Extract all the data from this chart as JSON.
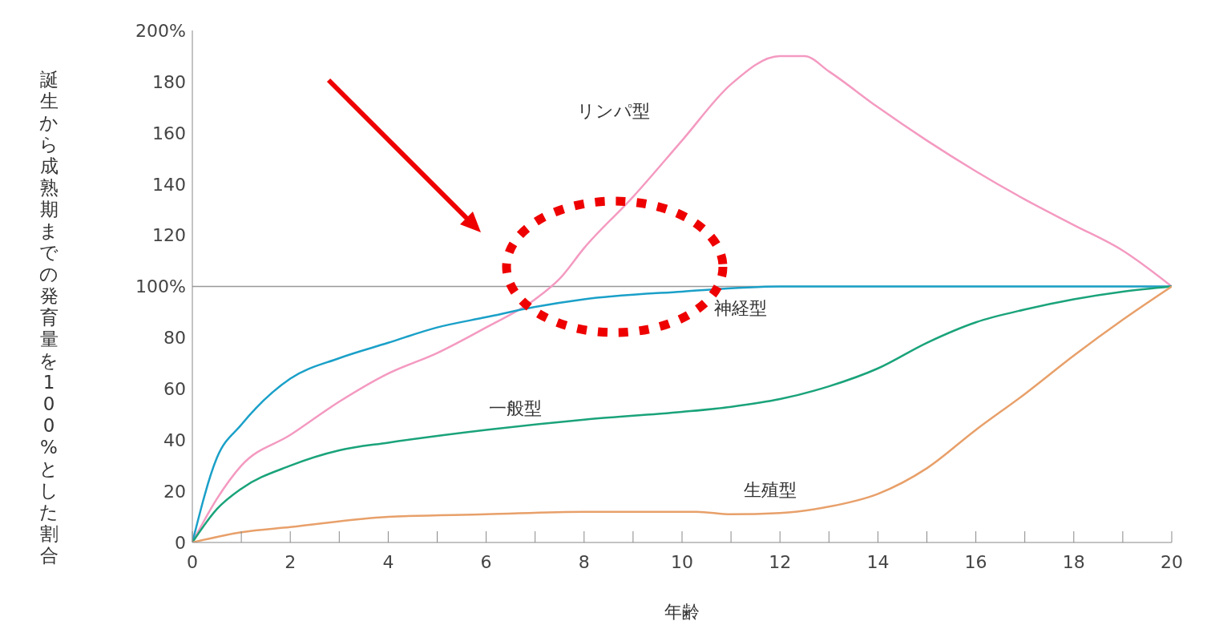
{
  "chart_data": {
    "type": "line",
    "xlabel": "年齢",
    "ylabel": "誕生から成熟期までの発育量を100%とした割合",
    "xlim": [
      0,
      20
    ],
    "ylim": [
      0,
      200
    ],
    "xticks": [
      0,
      {
        "value": 1,
        "label": null
      },
      2,
      {
        "value": 3,
        "label": null
      },
      4,
      {
        "value": 5,
        "label": null
      },
      6,
      {
        "value": 7,
        "label": null
      },
      8,
      {
        "value": 9,
        "label": null
      },
      10,
      {
        "value": 11,
        "label": null
      },
      12,
      {
        "value": 13,
        "label": null
      },
      14,
      {
        "value": 15,
        "label": null
      },
      16,
      {
        "value": 17,
        "label": null
      },
      18,
      {
        "value": 19,
        "label": null
      },
      20
    ],
    "yticks": [
      0,
      20,
      40,
      60,
      80,
      {
        "value": 100,
        "label": "100%"
      },
      120,
      140,
      160,
      180,
      {
        "value": 200,
        "label": "200%"
      }
    ],
    "grid": false,
    "legend": false,
    "marker": "none",
    "line_style": "solid",
    "ref_lines": [
      {
        "axis": "y",
        "value": 100,
        "color": "#999999"
      }
    ],
    "series": [
      {
        "name": "リンパ型",
        "color": "#f49ac1",
        "x": [
          0,
          0.5,
          1,
          2,
          3,
          4,
          5,
          6,
          7,
          7.5,
          8,
          9,
          10,
          11,
          12,
          12.5,
          13,
          14,
          15,
          16,
          17,
          18,
          19,
          20
        ],
        "values": [
          0,
          17,
          30,
          42,
          55,
          66,
          74,
          84,
          95,
          103,
          115,
          135,
          157,
          179,
          190,
          190,
          184,
          170,
          157,
          145,
          134,
          124,
          114,
          100
        ]
      },
      {
        "name": "神経型",
        "color": "#1aa0c8",
        "x": [
          0,
          0.5,
          1,
          2,
          3,
          4,
          5,
          6,
          7,
          8,
          10,
          12,
          14,
          16,
          18,
          20
        ],
        "values": [
          0,
          33,
          46,
          64,
          72,
          78,
          84,
          88,
          92,
          95,
          98,
          100,
          100,
          100,
          100,
          100
        ]
      },
      {
        "name": "一般型",
        "color": "#1aa37a",
        "x": [
          0,
          0.5,
          1,
          2,
          3,
          4,
          6,
          8,
          10,
          11,
          12,
          13,
          14,
          15,
          16,
          17,
          18,
          19,
          20
        ],
        "values": [
          0,
          13,
          21,
          30,
          36,
          39,
          44,
          48,
          51,
          53,
          56,
          61,
          68,
          78,
          86,
          91,
          95,
          98,
          100
        ]
      },
      {
        "name": "生殖型",
        "color": "#e8a06a",
        "x": [
          0,
          1,
          2,
          4,
          6,
          8,
          10.3,
          11,
          12,
          13,
          14,
          15,
          16,
          17,
          18,
          19,
          20
        ],
        "values": [
          0,
          4,
          6,
          10,
          11,
          12,
          12,
          11,
          11.5,
          14,
          19,
          29,
          44,
          58,
          73,
          87,
          100
        ]
      }
    ]
  }
}
